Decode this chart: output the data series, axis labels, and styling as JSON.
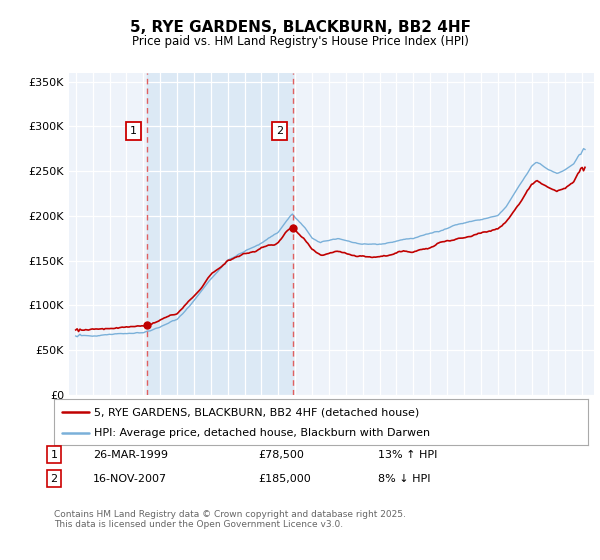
{
  "title": "5, RYE GARDENS, BLACKBURN, BB2 4HF",
  "subtitle": "Price paid vs. HM Land Registry's House Price Index (HPI)",
  "legend_line1": "5, RYE GARDENS, BLACKBURN, BB2 4HF (detached house)",
  "legend_line2": "HPI: Average price, detached house, Blackburn with Darwen",
  "footnote": "Contains HM Land Registry data © Crown copyright and database right 2025.\nThis data is licensed under the Open Government Licence v3.0.",
  "purchase1_date": "26-MAR-1999",
  "purchase1_price": 78500,
  "purchase1_label": "£78,500",
  "purchase1_pct": "13% ↑ HPI",
  "purchase2_date": "16-NOV-2007",
  "purchase2_price": 185000,
  "purchase2_label": "£185,000",
  "purchase2_pct": "8% ↓ HPI",
  "marker1_year": 1999.23,
  "marker2_year": 2007.88,
  "hpi_color": "#7ab0d9",
  "paid_color": "#c00000",
  "vline_color": "#e06060",
  "shade_color": "#dce9f5",
  "plot_bg": "#eef3fa",
  "ylim": [
    0,
    360000
  ],
  "yticks": [
    0,
    50000,
    100000,
    150000,
    200000,
    250000,
    300000,
    350000
  ],
  "xlim_left": 1994.6,
  "xlim_right": 2025.7
}
